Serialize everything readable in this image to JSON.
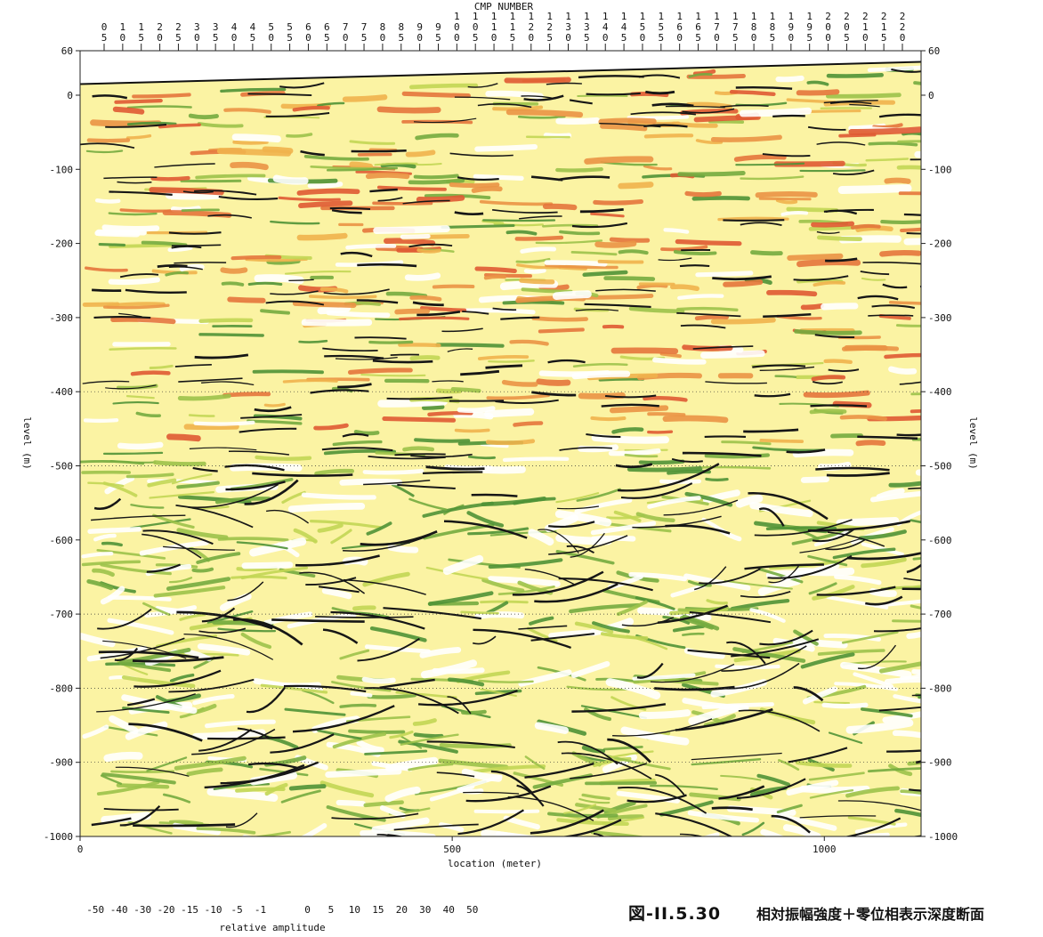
{
  "figure": {
    "number": "図-II.5.30",
    "caption": "相対振幅強度＋零位相表示深度断面"
  },
  "chart_data": {
    "type": "heatmap",
    "top_axis": {
      "label": "CMP NUMBER",
      "ticks": [
        "0 5",
        "1 0",
        "1 5",
        "2 0",
        "2 5",
        "3 0",
        "3 5",
        "4 0",
        "4 5",
        "5 0",
        "5 5",
        "6 0",
        "6 5",
        "7 0",
        "7 5",
        "8 0",
        "8 5",
        "9 0",
        "9 5",
        "1 0 0",
        "1 0 5",
        "1 1 0",
        "1 1 5",
        "1 2 0",
        "1 2 5",
        "1 3 0",
        "1 3 5",
        "1 4 0",
        "1 4 5",
        "1 5 0",
        "1 5 5",
        "1 6 0",
        "1 6 5",
        "1 7 0",
        "1 7 5",
        "1 8 0",
        "1 8 5",
        "1 9 0",
        "1 9 5",
        "2 0 0",
        "2 0 5",
        "2 1 0",
        "2 1 5",
        "2 2 0"
      ]
    },
    "x_axis": {
      "label": "location (meter)",
      "range": [
        0,
        1130
      ],
      "ticks": [
        0,
        500,
        1000
      ]
    },
    "y_axis": {
      "label": "level (m)",
      "range": [
        -1000,
        60
      ],
      "ticks": [
        60,
        0,
        -100,
        -200,
        -300,
        -400,
        -500,
        -600,
        -700,
        -800,
        -900,
        -1000
      ]
    },
    "grid": "horizontal dotted lines at -400, -500, -700, -800, -900",
    "surface_elevation_m": {
      "x": [
        0,
        1130
      ],
      "y": [
        15,
        45
      ]
    },
    "legend": {
      "title": "relative amplitude",
      "placement": "bottom-left",
      "entries": [
        {
          "label": "-50",
          "color": "#d83a2a"
        },
        {
          "label": "-40",
          "color": "#df5a33"
        },
        {
          "label": "-30",
          "color": "#e4763c"
        },
        {
          "label": "-20",
          "color": "#ea9445"
        },
        {
          "label": "-15",
          "color": "#f0b24c"
        },
        {
          "label": "-10",
          "color": "#f6d84a"
        },
        {
          "label": "-5",
          "color": "#fbee7e"
        },
        {
          "label": "-1",
          "color": "#fdf8c8"
        },
        {
          "label": "",
          "color": "#ffffff"
        },
        {
          "label": "0",
          "color": "#fbf5a0"
        },
        {
          "label": "5",
          "color": "#e7ea6b"
        },
        {
          "label": "10",
          "color": "#c2d654"
        },
        {
          "label": "15",
          "color": "#9cc24a"
        },
        {
          "label": "20",
          "color": "#74ab3f"
        },
        {
          "label": "30",
          "color": "#4f9236"
        },
        {
          "label": "40",
          "color": "#2f7a2d"
        },
        {
          "label": "50",
          "color": "#1e5e22"
        }
      ]
    }
  }
}
